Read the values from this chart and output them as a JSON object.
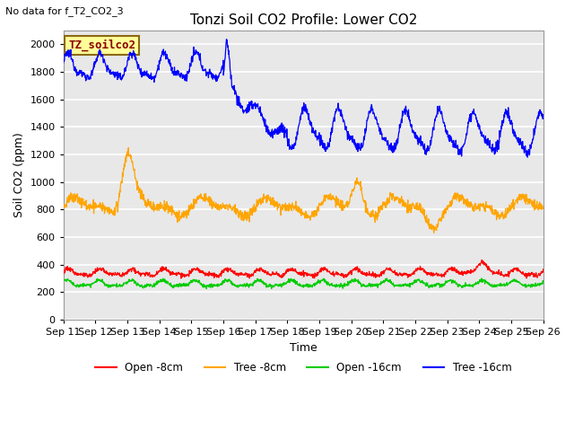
{
  "title": "Tonzi Soil CO2 Profile: Lower CO2",
  "subtitle": "No data for f_T2_CO2_3",
  "ylabel": "Soil CO2 (ppm)",
  "xlabel": "Time",
  "legend_labels": [
    "Open -8cm",
    "Tree -8cm",
    "Open -16cm",
    "Tree -16cm"
  ],
  "legend_colors": [
    "#ff0000",
    "#ffa500",
    "#00cc00",
    "#0000ff"
  ],
  "inset_label": "TZ_soilco2",
  "inset_color": "#8b0000",
  "inset_bg": "#ffff99",
  "inset_border": "#8b6914",
  "ylim": [
    0,
    2100
  ],
  "yticks": [
    0,
    200,
    400,
    600,
    800,
    1000,
    1200,
    1400,
    1600,
    1800,
    2000
  ],
  "xticklabels": [
    "Sep 11",
    "Sep 12",
    "Sep 13",
    "Sep 14",
    "Sep 15",
    "Sep 16",
    "Sep 17",
    "Sep 18",
    "Sep 19",
    "Sep 20",
    "Sep 21",
    "Sep 22",
    "Sep 23",
    "Sep 24",
    "Sep 25",
    "Sep 26"
  ],
  "bg_color": "#ffffff",
  "plot_bg": "#e8e8e8",
  "grid_color": "#ffffff",
  "num_points": 1440
}
